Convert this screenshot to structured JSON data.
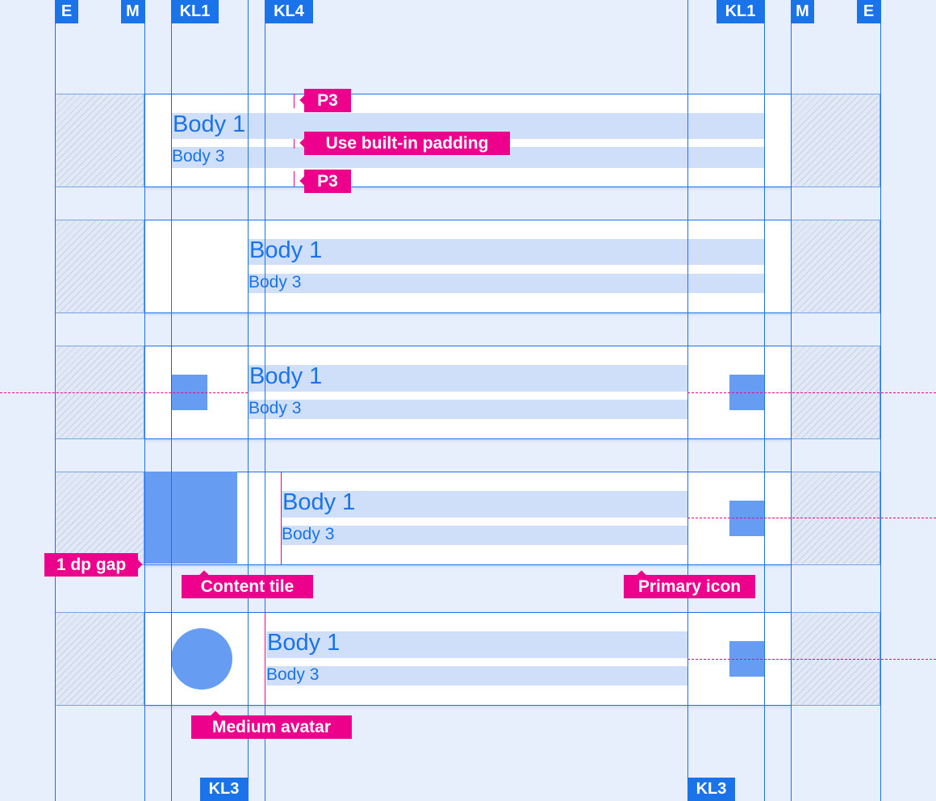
{
  "colors": {
    "grid": "#1a73e8",
    "annotation": "#ec008c",
    "fill": "#669df2",
    "text_bar": "#cfdff9"
  },
  "top_labels": [
    "E",
    "M",
    "KL1",
    "KL4",
    "KL1",
    "M",
    "E"
  ],
  "bottom_labels": [
    "KL3",
    "KL3"
  ],
  "rows": [
    {
      "primary": "Body 1",
      "secondary": "Body 3"
    },
    {
      "primary": "Body 1",
      "secondary": "Body 3"
    },
    {
      "primary": "Body 1",
      "secondary": "Body 3"
    },
    {
      "primary": "Body 1",
      "secondary": "Body 3"
    },
    {
      "primary": "Body 1",
      "secondary": "Body 3"
    }
  ],
  "annotations": {
    "p3_top": "P3",
    "builtin_padding": "Use built-in padding",
    "p3_bottom": "P3",
    "gap": "1 dp gap",
    "content_tile": "Content tile",
    "primary_icon": "Primary icon",
    "medium_avatar": "Medium avatar"
  }
}
